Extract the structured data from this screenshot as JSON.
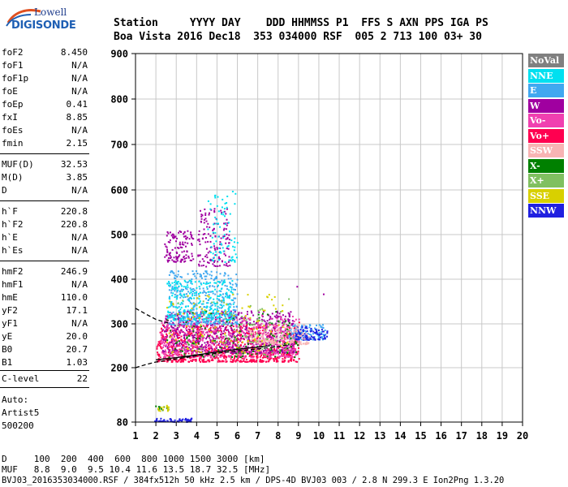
{
  "logo": {
    "line1": "Lowell",
    "line2": "DIGISONDE"
  },
  "header": {
    "line1": "Station     YYYY DAY    DDD HHMMSS P1  FFS S AXN PPS IGA PS",
    "line2": "Boa Vista 2016 Dec18  353 034000 RSF  005 2 713 100 03+ 30"
  },
  "params": [
    {
      "label": "foF2",
      "value": "8.450"
    },
    {
      "label": "foF1",
      "value": "N/A"
    },
    {
      "label": "foF1p",
      "value": "N/A"
    },
    {
      "label": "foE",
      "value": "N/A"
    },
    {
      "label": "foEp",
      "value": "0.41"
    },
    {
      "label": "fxI",
      "value": "8.85"
    },
    {
      "label": "foEs",
      "value": "N/A"
    },
    {
      "label": "fmin",
      "value": "2.15"
    },
    {
      "label": "MUF(D)",
      "value": "32.53"
    },
    {
      "label": "M(D)",
      "value": "3.85"
    },
    {
      "label": "D",
      "value": "N/A"
    },
    {
      "label": "h`F",
      "value": "220.8"
    },
    {
      "label": "h`F2",
      "value": "220.8"
    },
    {
      "label": "h`E",
      "value": "N/A"
    },
    {
      "label": "h`Es",
      "value": "N/A"
    },
    {
      "label": "hmF2",
      "value": "246.9"
    },
    {
      "label": "hmF1",
      "value": "N/A"
    },
    {
      "label": "hmE",
      "value": "110.0"
    },
    {
      "label": "yF2",
      "value": "17.1"
    },
    {
      "label": "yF1",
      "value": "N/A"
    },
    {
      "label": "yE",
      "value": "20.0"
    },
    {
      "label": "B0",
      "value": "20.7"
    },
    {
      "label": "B1",
      "value": "1.03"
    },
    {
      "label": "C-level",
      "value": "22"
    }
  ],
  "autoscaling": {
    "line1": "Auto:",
    "line2": "Artist5",
    "line3": "500200"
  },
  "legend": [
    {
      "label": "NoVal",
      "color": "#808080"
    },
    {
      "label": "NNE",
      "color": "#00e0f0"
    },
    {
      "label": "E",
      "color": "#40a8f0"
    },
    {
      "label": "W",
      "color": "#a000a0"
    },
    {
      "label": "Vo-",
      "color": "#f040b0"
    },
    {
      "label": "Vo+",
      "color": "#ff0050"
    },
    {
      "label": "SSW",
      "color": "#f8b4b4"
    },
    {
      "label": "X-",
      "color": "#008000"
    },
    {
      "label": "X+",
      "color": "#80c060"
    },
    {
      "label": "SSE",
      "color": "#d8d000"
    },
    {
      "label": "NNW",
      "color": "#2020e0"
    }
  ],
  "footer": {
    "line1": "D     100  200  400  600  800 1000 1500 3000 [km]",
    "line2": "MUF   8.8  9.0  9.5 10.4 11.6 13.5 18.7 32.5 [MHz]",
    "line3": "BVJ03_2016353034000.RSF / 384fx512h 50 kHz 2.5 km / DPS-4D BVJ03 003 / 2.8 N 299.3 E Ion2Png 1.3.20"
  },
  "chart_data": {
    "type": "scatter",
    "xlim": [
      1,
      20
    ],
    "ylim": [
      80,
      900
    ],
    "x_ticks": [
      "1",
      "2",
      "3",
      "4",
      "5",
      "6",
      "7",
      "8",
      "9",
      "10",
      "11",
      "12",
      "13",
      "14",
      "15",
      "16",
      "17",
      "18",
      "19",
      "20"
    ],
    "y_ticks": [
      "80",
      "200",
      "300",
      "400",
      "500",
      "600",
      "700",
      "800",
      "900"
    ],
    "y_tick_values": [
      80,
      200,
      300,
      400,
      500,
      600,
      700,
      800,
      900
    ],
    "grid": true,
    "legend_position": "right",
    "series": [
      {
        "color": "#ff0050",
        "clusters": [
          {
            "x": [
              2.0,
              9.0
            ],
            "y": [
              215,
              300
            ],
            "n": 900
          }
        ]
      },
      {
        "color": "#a000a0",
        "clusters": [
          {
            "x": [
              2.3,
              8.8
            ],
            "y": [
              235,
              330
            ],
            "n": 700
          },
          {
            "x": [
              2.4,
              3.8
            ],
            "y": [
              440,
              510
            ],
            "n": 120
          },
          {
            "x": [
              4.0,
              5.6
            ],
            "y": [
              430,
              560
            ],
            "n": 140
          }
        ]
      },
      {
        "color": "#f040b0",
        "clusters": [
          {
            "x": [
              2.2,
              9.0
            ],
            "y": [
              225,
              320
            ],
            "n": 500
          }
        ]
      },
      {
        "color": "#40a8f0",
        "clusters": [
          {
            "x": [
              2.6,
              6.0
            ],
            "y": [
              300,
              420
            ],
            "n": 400
          },
          {
            "x": [
              8.5,
              10.3
            ],
            "y": [
              265,
              300
            ],
            "n": 120
          }
        ]
      },
      {
        "color": "#00e0f0",
        "clusters": [
          {
            "x": [
              2.5,
              5.8
            ],
            "y": [
              310,
              400
            ],
            "n": 250
          },
          {
            "x": [
              4.5,
              6.0
            ],
            "y": [
              440,
              600
            ],
            "n": 80
          }
        ]
      },
      {
        "color": "#2020e0",
        "clusters": [
          {
            "x": [
              8.8,
              10.4
            ],
            "y": [
              265,
              295
            ],
            "n": 90
          },
          {
            "x": [
              1.9,
              3.8
            ],
            "y": [
              82,
              90
            ],
            "n": 60
          }
        ]
      },
      {
        "color": "#f8b4b4",
        "clusters": [
          {
            "x": [
              6.5,
              9.5
            ],
            "y": [
              255,
              300
            ],
            "n": 150
          }
        ]
      },
      {
        "color": "#008000",
        "clusters": [
          {
            "x": [
              2.5,
              9.0
            ],
            "y": [
              225,
              330
            ],
            "n": 120
          },
          {
            "x": [
              1.9,
              2.6
            ],
            "y": [
              108,
              118
            ],
            "n": 12
          }
        ]
      },
      {
        "color": "#80c060",
        "clusters": [
          {
            "x": [
              3.0,
              8.5
            ],
            "y": [
              230,
              360
            ],
            "n": 100
          }
        ]
      },
      {
        "color": "#d8d000",
        "clusters": [
          {
            "x": [
              2.5,
              8.5
            ],
            "y": [
              235,
              370
            ],
            "n": 110
          },
          {
            "x": [
              1.9,
              2.6
            ],
            "y": [
              106,
              118
            ],
            "n": 14
          }
        ]
      }
    ],
    "trace_lines": [
      {
        "style": "dashed",
        "x": [
          1.0,
          1.5,
          2.0,
          3.0,
          4.0,
          5.0,
          6.0,
          7.0,
          8.0,
          8.45
        ],
        "y": [
          200,
          207,
          213,
          220,
          227,
          233,
          238,
          243,
          248,
          252
        ]
      },
      {
        "style": "dashed",
        "x": [
          1.0,
          1.5,
          2.0,
          2.6
        ],
        "y": [
          335,
          322,
          310,
          302
        ]
      },
      {
        "style": "solid",
        "x": [
          2.0,
          3.0,
          4.0,
          5.0,
          6.0,
          7.0,
          7.6
        ],
        "y": [
          218,
          223,
          229,
          236,
          242,
          247,
          250
        ]
      }
    ],
    "extra_points": [
      {
        "x": 8.9,
        "y": 385,
        "color": "#a000a0"
      },
      {
        "x": 10.2,
        "y": 368,
        "color": "#a000a0"
      },
      {
        "x": 9.0,
        "y": 305,
        "color": "#ff0050"
      }
    ]
  }
}
